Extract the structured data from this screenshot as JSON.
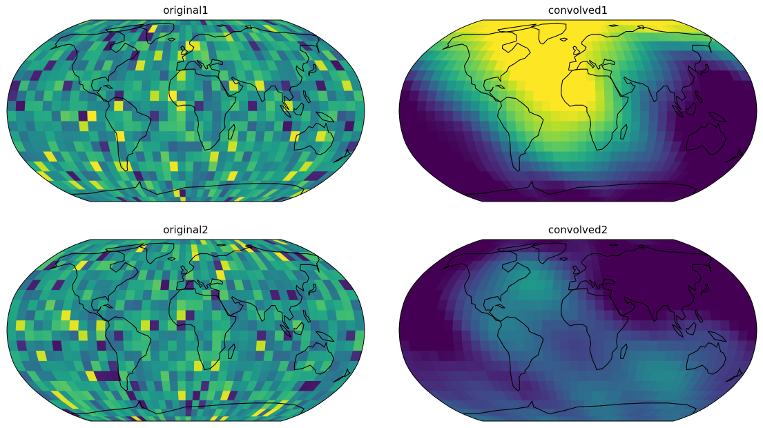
{
  "figure": {
    "colormap": "viridis",
    "projection": "robinson",
    "coastline_color": "#000000",
    "frame_color": "#000000"
  },
  "chart_data": [
    {
      "type": "heatmap",
      "title": "original1",
      "projection": "robinson",
      "colormap": "viridis",
      "description_field": "random",
      "smooth": false,
      "seed": 11
    },
    {
      "type": "heatmap",
      "title": "convolved1",
      "projection": "robinson",
      "colormap": "viridis",
      "description_field": "smoothed",
      "smooth": true,
      "seed": 11
    },
    {
      "type": "heatmap",
      "title": "original2",
      "projection": "robinson",
      "colormap": "viridis",
      "description_field": "random",
      "smooth": false,
      "seed": 29
    },
    {
      "type": "heatmap",
      "title": "convolved2",
      "projection": "robinson",
      "colormap": "viridis",
      "description_field": "smoothed",
      "smooth": true,
      "seed": 29
    }
  ]
}
